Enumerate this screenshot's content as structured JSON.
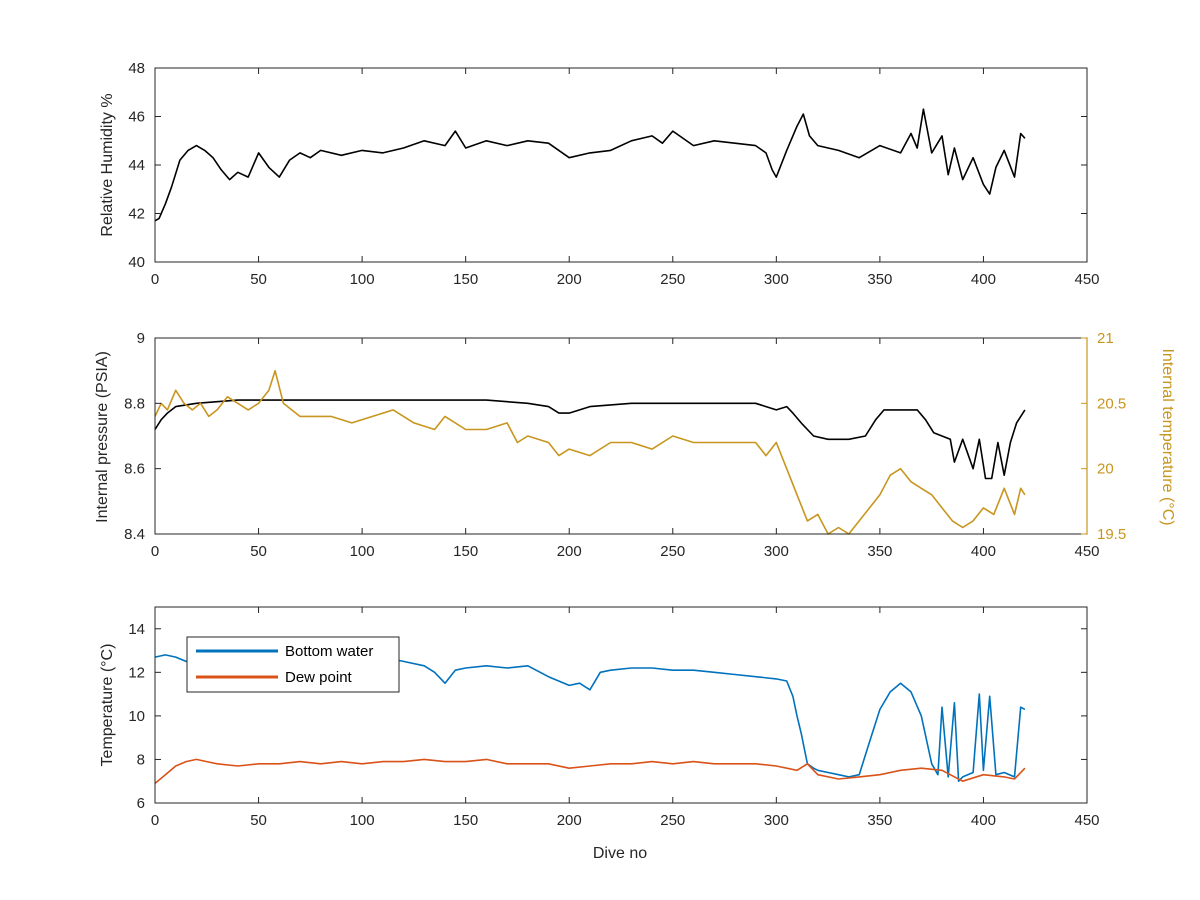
{
  "chart_data": [
    {
      "type": "line",
      "title": "",
      "xlabel": "",
      "ylabel": "Relative Humidity %",
      "xlim": [
        0,
        450
      ],
      "ylim": [
        40,
        48
      ],
      "xticks": [
        0,
        50,
        100,
        150,
        200,
        250,
        300,
        350,
        400,
        450
      ],
      "yticks": [
        40,
        42,
        44,
        46,
        48
      ],
      "xtick_labels": [
        "0",
        "50",
        "100",
        "150",
        "200",
        "250",
        "300",
        "350",
        "400",
        "450"
      ],
      "ytick_labels": [
        "40",
        "42",
        "44",
        "46",
        "48"
      ],
      "grid": false,
      "series": [
        {
          "color": "#000000",
          "x": [
            0,
            2,
            5,
            8,
            12,
            16,
            20,
            24,
            28,
            32,
            36,
            40,
            45,
            50,
            55,
            60,
            65,
            70,
            75,
            80,
            90,
            100,
            110,
            120,
            130,
            140,
            145,
            150,
            160,
            170,
            180,
            190,
            200,
            210,
            220,
            230,
            240,
            245,
            250,
            260,
            270,
            280,
            290,
            295,
            298,
            300,
            305,
            310,
            313,
            316,
            320,
            330,
            340,
            350,
            360,
            365,
            368,
            371,
            375,
            380,
            383,
            386,
            390,
            395,
            400,
            403,
            406,
            410,
            415,
            418,
            420
          ],
          "y": [
            41.7,
            41.8,
            42.4,
            43.1,
            44.2,
            44.6,
            44.8,
            44.6,
            44.3,
            43.8,
            43.4,
            43.7,
            43.5,
            44.5,
            43.9,
            43.5,
            44.2,
            44.5,
            44.3,
            44.6,
            44.4,
            44.6,
            44.5,
            44.7,
            45.0,
            44.8,
            45.4,
            44.7,
            45.0,
            44.8,
            45.0,
            44.9,
            44.3,
            44.5,
            44.6,
            45.0,
            45.2,
            44.9,
            45.4,
            44.8,
            45.0,
            44.9,
            44.8,
            44.5,
            43.8,
            43.5,
            44.6,
            45.6,
            46.1,
            45.2,
            44.8,
            44.6,
            44.3,
            44.8,
            44.5,
            45.3,
            44.7,
            46.3,
            44.5,
            45.2,
            43.6,
            44.7,
            43.4,
            44.3,
            43.2,
            42.8,
            43.9,
            44.6,
            43.5,
            45.3,
            45.1
          ]
        }
      ]
    },
    {
      "type": "line",
      "title": "",
      "xlabel": "",
      "ylabel": "Internal pressure (PSIA)",
      "y2label": "Internal temperature (°C)",
      "xlim": [
        0,
        450
      ],
      "ylim": [
        8.4,
        9
      ],
      "y2lim": [
        19.5,
        21
      ],
      "xticks": [
        0,
        50,
        100,
        150,
        200,
        250,
        300,
        350,
        400,
        450
      ],
      "yticks": [
        8.4,
        8.6,
        8.8,
        9
      ],
      "y2ticks": [
        19.5,
        20,
        20.5,
        21
      ],
      "xtick_labels": [
        "0",
        "50",
        "100",
        "150",
        "200",
        "250",
        "300",
        "350",
        "400",
        "450"
      ],
      "ytick_labels": [
        "8.4",
        "8.6",
        "8.8",
        "9"
      ],
      "y2tick_labels": [
        "19.5",
        "20",
        "20.5",
        "21"
      ],
      "axis2_color": "#c8961e",
      "grid": false,
      "series": [
        {
          "axis": "left",
          "color": "#000000",
          "x": [
            0,
            3,
            6,
            10,
            20,
            40,
            60,
            80,
            100,
            120,
            140,
            160,
            180,
            190,
            195,
            200,
            205,
            210,
            230,
            250,
            270,
            290,
            295,
            300,
            305,
            308,
            312,
            318,
            325,
            335,
            343,
            348,
            352,
            360,
            368,
            372,
            376,
            380,
            384,
            386,
            390,
            395,
            398,
            401,
            404,
            407,
            410,
            413,
            416,
            420
          ],
          "y": [
            8.72,
            8.75,
            8.77,
            8.79,
            8.8,
            8.81,
            8.81,
            8.81,
            8.81,
            8.81,
            8.81,
            8.81,
            8.8,
            8.79,
            8.77,
            8.77,
            8.78,
            8.79,
            8.8,
            8.8,
            8.8,
            8.8,
            8.79,
            8.78,
            8.79,
            8.77,
            8.74,
            8.7,
            8.69,
            8.69,
            8.7,
            8.75,
            8.78,
            8.78,
            8.78,
            8.75,
            8.71,
            8.7,
            8.69,
            8.62,
            8.69,
            8.6,
            8.69,
            8.57,
            8.57,
            8.68,
            8.58,
            8.68,
            8.74,
            8.78
          ]
        },
        {
          "axis": "right",
          "color": "#c8961e",
          "x": [
            0,
            3,
            6,
            10,
            14,
            18,
            22,
            26,
            30,
            35,
            40,
            45,
            50,
            55,
            58,
            62,
            66,
            70,
            75,
            85,
            95,
            105,
            115,
            125,
            135,
            140,
            150,
            160,
            170,
            175,
            180,
            190,
            195,
            200,
            210,
            220,
            230,
            240,
            250,
            260,
            270,
            280,
            290,
            295,
            300,
            305,
            310,
            315,
            320,
            325,
            330,
            335,
            340,
            345,
            350,
            355,
            360,
            365,
            370,
            375,
            380,
            385,
            390,
            395,
            400,
            405,
            410,
            415,
            418,
            420
          ],
          "y": [
            20.4,
            20.5,
            20.45,
            20.6,
            20.5,
            20.45,
            20.5,
            20.4,
            20.45,
            20.55,
            20.5,
            20.45,
            20.5,
            20.6,
            20.75,
            20.5,
            20.45,
            20.4,
            20.4,
            20.4,
            20.35,
            20.4,
            20.45,
            20.35,
            20.3,
            20.4,
            20.3,
            20.3,
            20.35,
            20.2,
            20.25,
            20.2,
            20.1,
            20.15,
            20.1,
            20.2,
            20.2,
            20.15,
            20.25,
            20.2,
            20.2,
            20.2,
            20.2,
            20.1,
            20.2,
            20.0,
            19.8,
            19.6,
            19.65,
            19.5,
            19.55,
            19.5,
            19.6,
            19.7,
            19.8,
            19.95,
            20.0,
            19.9,
            19.85,
            19.8,
            19.7,
            19.6,
            19.55,
            19.6,
            19.7,
            19.65,
            19.85,
            19.65,
            19.85,
            19.8
          ]
        }
      ]
    },
    {
      "type": "line",
      "title": "",
      "xlabel": "Dive no",
      "ylabel": "Temperature (°C)",
      "xlim": [
        0,
        450
      ],
      "ylim": [
        6,
        15
      ],
      "xticks": [
        0,
        50,
        100,
        150,
        200,
        250,
        300,
        350,
        400,
        450
      ],
      "yticks": [
        6,
        8,
        10,
        12,
        14
      ],
      "xtick_labels": [
        "0",
        "50",
        "100",
        "150",
        "200",
        "250",
        "300",
        "350",
        "400",
        "450"
      ],
      "ytick_labels": [
        "6",
        "8",
        "10",
        "12",
        "14"
      ],
      "grid": false,
      "legend": "top-left",
      "series": [
        {
          "name": "Bottom water",
          "color": "#0072bd",
          "x": [
            0,
            5,
            10,
            15,
            20,
            25,
            30,
            40,
            50,
            60,
            70,
            80,
            90,
            100,
            110,
            120,
            130,
            135,
            140,
            145,
            150,
            160,
            170,
            180,
            190,
            200,
            205,
            210,
            215,
            220,
            230,
            240,
            250,
            260,
            270,
            280,
            290,
            300,
            305,
            308,
            310,
            312,
            315,
            318,
            320,
            325,
            330,
            335,
            340,
            345,
            350,
            355,
            360,
            365,
            370,
            375,
            378,
            380,
            383,
            386,
            388,
            390,
            395,
            398,
            400,
            403,
            406,
            410,
            415,
            418,
            420
          ],
          "y": [
            12.7,
            12.8,
            12.7,
            12.5,
            12.6,
            12.6,
            12.7,
            12.5,
            12.3,
            12.5,
            12.4,
            12.5,
            12.6,
            12.8,
            12.7,
            12.5,
            12.3,
            12.0,
            11.5,
            12.1,
            12.2,
            12.3,
            12.2,
            12.3,
            11.8,
            11.4,
            11.5,
            11.2,
            12.0,
            12.1,
            12.2,
            12.2,
            12.1,
            12.1,
            12.0,
            11.9,
            11.8,
            11.7,
            11.6,
            10.9,
            10.0,
            9.2,
            7.8,
            7.6,
            7.5,
            7.4,
            7.3,
            7.2,
            7.3,
            8.8,
            10.3,
            11.1,
            11.5,
            11.1,
            10.0,
            7.8,
            7.3,
            10.4,
            7.2,
            10.6,
            7.0,
            7.2,
            7.4,
            11.0,
            7.5,
            10.9,
            7.3,
            7.4,
            7.2,
            10.4,
            10.3
          ]
        },
        {
          "name": "Dew point",
          "color": "#d95319",
          "x": [
            0,
            5,
            10,
            15,
            20,
            25,
            30,
            40,
            50,
            60,
            70,
            80,
            90,
            100,
            110,
            120,
            130,
            140,
            150,
            160,
            170,
            180,
            190,
            200,
            210,
            220,
            230,
            240,
            250,
            260,
            270,
            280,
            290,
            300,
            310,
            315,
            320,
            330,
            340,
            350,
            360,
            370,
            380,
            390,
            400,
            410,
            415,
            420
          ],
          "y": [
            6.9,
            7.3,
            7.7,
            7.9,
            8.0,
            7.9,
            7.8,
            7.7,
            7.8,
            7.8,
            7.9,
            7.8,
            7.9,
            7.8,
            7.9,
            7.9,
            8.0,
            7.9,
            7.9,
            8.0,
            7.8,
            7.8,
            7.8,
            7.6,
            7.7,
            7.8,
            7.8,
            7.9,
            7.8,
            7.9,
            7.8,
            7.8,
            7.8,
            7.7,
            7.5,
            7.8,
            7.3,
            7.1,
            7.2,
            7.3,
            7.5,
            7.6,
            7.5,
            7.0,
            7.3,
            7.2,
            7.1,
            7.6
          ]
        }
      ]
    }
  ]
}
